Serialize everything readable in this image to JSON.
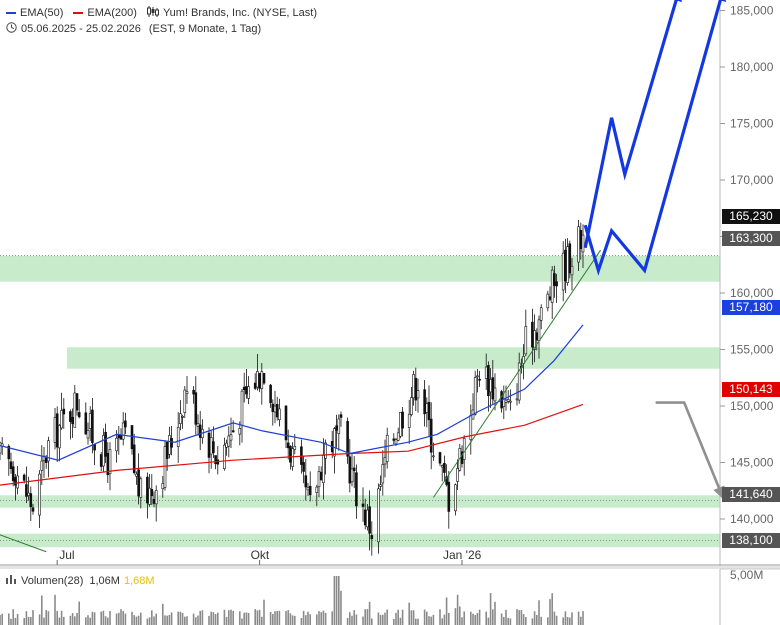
{
  "legend": {
    "ema50_label": "EMA(50)",
    "ema200_label": "EMA(200)",
    "title": "Yum! Brands, Inc. (NYSE, Last)",
    "range": "05.06.2025 - 25.02.2026",
    "range_info": "(EST, 9 Monate, 1 Tag)"
  },
  "colors": {
    "ema50": "#1f3fd6",
    "ema200": "#e01010",
    "zone": "#c8eccb",
    "forecast_up": "#1438e0",
    "forecast_down": "#909090",
    "trendline": "#2e7d32",
    "price_tag": "#111111",
    "ema50_tag": "#1c3fe0",
    "ema200_tag": "#e00000",
    "zone_tag": "#555555"
  },
  "volume_panel": {
    "label": "Volumen(28)",
    "value1": "1,06M",
    "value2": "1,68M",
    "axis_label": "5,00M"
  },
  "price_tags": {
    "last": "165,230",
    "zone1": "163,300",
    "ema50": "157,180",
    "ema200": "150,143",
    "zone2": "141,640",
    "zone3": "138,100"
  },
  "chart_data": {
    "type": "candlestick",
    "title": "Yum! Brands, Inc. (NYSE, Last)",
    "x_tick_labels": [
      "Jul",
      "Okt",
      "Jan '26"
    ],
    "y_tick_labels": [
      "140,000",
      "145,000",
      "150,000",
      "155,000",
      "160,000",
      "165,000",
      "170,000",
      "175,000",
      "180,000",
      "185,000"
    ],
    "ylim": [
      137,
      186
    ],
    "x_range": [
      "2025-06-05",
      "2026-02-25"
    ],
    "grid": false,
    "close_path": [
      [
        "2025-06-05",
        145.5
      ],
      [
        "2025-06-12",
        144.5
      ],
      [
        "2025-06-20",
        141.0
      ],
      [
        "2025-06-27",
        146.5
      ],
      [
        "2025-07-03",
        148.5
      ],
      [
        "2025-07-10",
        150.5
      ],
      [
        "2025-07-18",
        147.0
      ],
      [
        "2025-07-25",
        145.0
      ],
      [
        "2025-08-01",
        147.5
      ],
      [
        "2025-08-08",
        142.0
      ],
      [
        "2025-08-15",
        143.0
      ],
      [
        "2025-08-22",
        147.0
      ],
      [
        "2025-08-29",
        152.0
      ],
      [
        "2025-09-05",
        148.0
      ],
      [
        "2025-09-12",
        145.5
      ],
      [
        "2025-09-19",
        148.0
      ],
      [
        "2025-09-26",
        151.5
      ],
      [
        "2025-10-03",
        153.5
      ],
      [
        "2025-10-10",
        149.0
      ],
      [
        "2025-10-17",
        145.0
      ],
      [
        "2025-10-24",
        141.0
      ],
      [
        "2025-10-31",
        146.5
      ],
      [
        "2025-11-07",
        147.5
      ],
      [
        "2025-11-14",
        142.5
      ],
      [
        "2025-11-21",
        139.0
      ],
      [
        "2025-11-28",
        146.0
      ],
      [
        "2025-12-05",
        149.5
      ],
      [
        "2025-12-12",
        152.5
      ],
      [
        "2025-12-19",
        146.5
      ],
      [
        "2025-12-26",
        142.0
      ],
      [
        "2026-01-02",
        147.0
      ],
      [
        "2026-01-09",
        153.5
      ],
      [
        "2026-01-16",
        151.5
      ],
      [
        "2026-01-23",
        149.5
      ],
      [
        "2026-01-30",
        155.5
      ],
      [
        "2026-02-06",
        158.0
      ],
      [
        "2026-02-13",
        161.5
      ],
      [
        "2026-02-20",
        163.5
      ],
      [
        "2026-02-25",
        165.23
      ]
    ],
    "series": [
      {
        "name": "EMA(50)",
        "values": [
          [
            0.0,
            146.5
          ],
          [
            0.1,
            145.2
          ],
          [
            0.2,
            147.5
          ],
          [
            0.3,
            146.8
          ],
          [
            0.4,
            148.5
          ],
          [
            0.45,
            147.8
          ],
          [
            0.55,
            146.8
          ],
          [
            0.6,
            145.8
          ],
          [
            0.7,
            146.8
          ],
          [
            0.75,
            147.5
          ],
          [
            0.82,
            149.5
          ],
          [
            0.9,
            151.5
          ],
          [
            0.95,
            154.0
          ],
          [
            1.0,
            157.18
          ]
        ]
      },
      {
        "name": "EMA(200)",
        "values": [
          [
            0.0,
            143.0
          ],
          [
            0.2,
            144.3
          ],
          [
            0.4,
            145.2
          ],
          [
            0.6,
            145.8
          ],
          [
            0.7,
            146.0
          ],
          [
            0.8,
            147.3
          ],
          [
            0.9,
            148.3
          ],
          [
            1.0,
            150.14
          ]
        ]
      }
    ],
    "support_resistance_zones": [
      [
        161.0,
        163.3
      ],
      [
        153.3,
        155.2
      ],
      [
        141.0,
        142.1
      ],
      [
        137.5,
        138.7
      ]
    ],
    "trendline": [
      [
        "2025-12-19",
        141.9
      ],
      [
        "2026-03-05",
        163.8
      ]
    ],
    "forecast_paths": [
      {
        "direction": "up",
        "points": [
          [
            "2026-02-26",
            164.0
          ],
          [
            "2026-03-10",
            175.5
          ],
          [
            "2026-03-16",
            170.5
          ],
          [
            "2026-04-10",
            187.0
          ]
        ]
      },
      {
        "direction": "up",
        "points": [
          [
            "2026-02-26",
            166.0
          ],
          [
            "2026-03-04",
            162.0
          ],
          [
            "2026-03-10",
            165.5
          ],
          [
            "2026-03-25",
            162.0
          ],
          [
            "2026-04-30",
            187.0
          ]
        ]
      },
      {
        "direction": "down",
        "points": [
          [
            "2026-03-30",
            150.3
          ],
          [
            "2026-04-12",
            150.3
          ],
          [
            "2026-04-30",
            141.7
          ]
        ]
      }
    ],
    "last_price": 165.23,
    "volume_axis": {
      "label": "5,00M",
      "ylim": [
        0,
        5.0
      ]
    }
  }
}
